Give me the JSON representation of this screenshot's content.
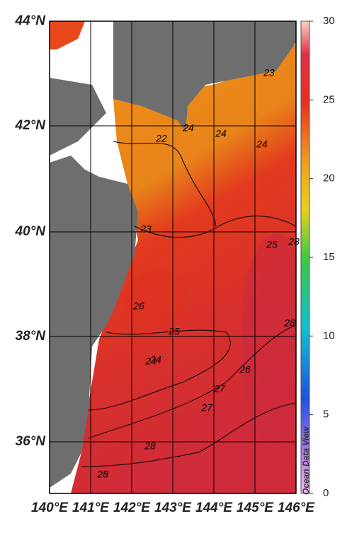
{
  "map": {
    "lat_labels": [
      "44°N",
      "42°N",
      "40°N",
      "38°N",
      "36°N"
    ],
    "lon_labels": [
      "140°E",
      "141°E",
      "142°E",
      "143°E",
      "144°E",
      "145°E",
      "146°E"
    ],
    "contour_labels": [
      "24",
      "23",
      "22",
      "24",
      "24",
      "24",
      "23",
      "25",
      "26",
      "25",
      "24",
      "26",
      "27",
      "27",
      "28",
      "28",
      "28",
      "28"
    ],
    "colorbar": {
      "range": [
        0,
        30
      ],
      "ticks": [
        0,
        5,
        10,
        15,
        20,
        25,
        30
      ]
    },
    "credit": "Ocean Data View"
  }
}
